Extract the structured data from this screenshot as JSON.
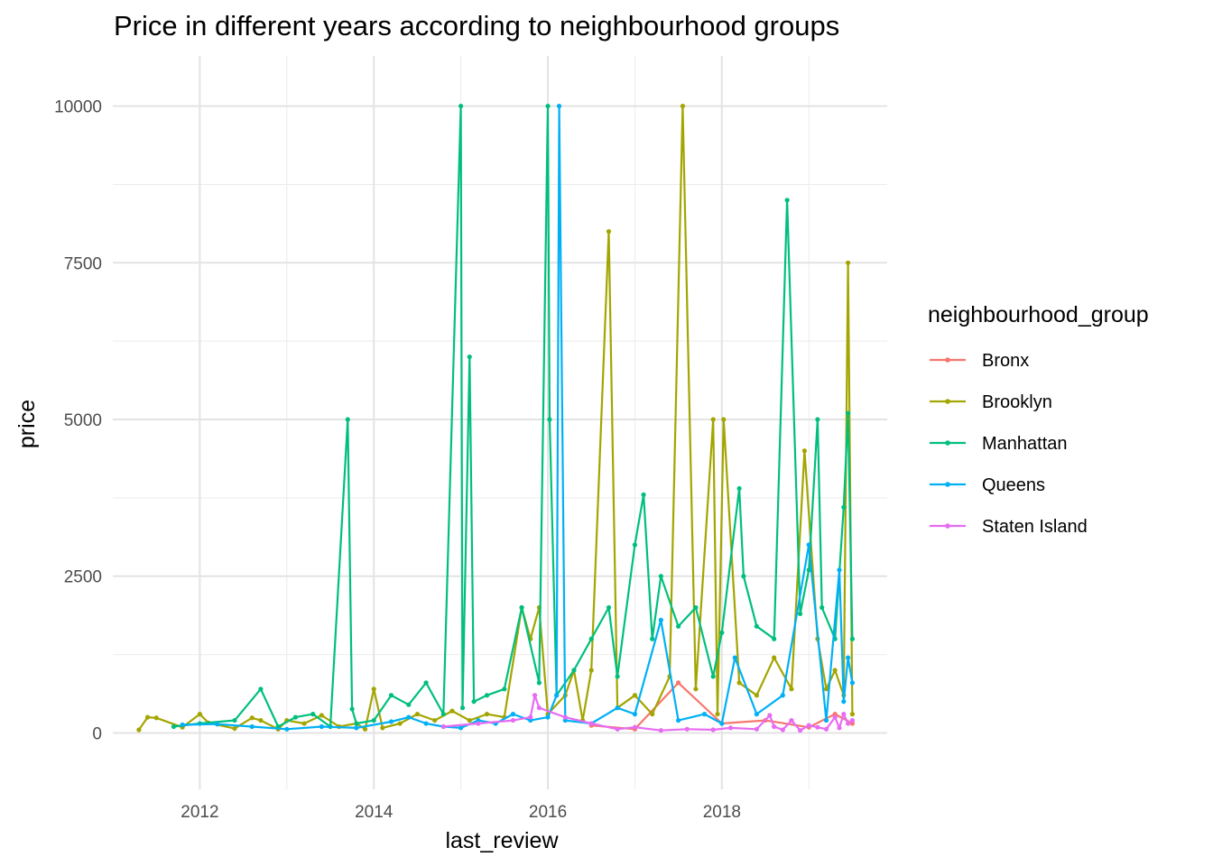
{
  "chart_data": {
    "type": "line",
    "title": "Price in different years according to neighbourhood groups",
    "xlabel": "last_review",
    "ylabel": "price",
    "xlim": [
      2011.0,
      2019.9
    ],
    "ylim": [
      -900,
      10800
    ],
    "x_ticks": [
      2012,
      2014,
      2016,
      2018
    ],
    "x_tick_labels": [
      "2012",
      "2014",
      "2016",
      "2018"
    ],
    "y_ticks": [
      0,
      2500,
      5000,
      7500,
      10000
    ],
    "y_tick_labels": [
      "0",
      "2500",
      "5000",
      "7500",
      "10000"
    ],
    "grid": true,
    "legend": {
      "title": "neighbourhood_group",
      "position": "right"
    },
    "series": [
      {
        "name": "Bronx",
        "color": "#F8766D",
        "x": [
          2016.5,
          2017.0,
          2017.5,
          2018.0,
          2018.5,
          2019.0,
          2019.3,
          2019.5
        ],
        "y": [
          120,
          60,
          800,
          150,
          200,
          90,
          300,
          150
        ]
      },
      {
        "name": "Brooklyn",
        "color": "#A3A500",
        "x": [
          2011.3,
          2011.4,
          2011.5,
          2011.8,
          2012.0,
          2012.1,
          2012.4,
          2012.6,
          2012.7,
          2012.9,
          2013.0,
          2013.2,
          2013.4,
          2013.6,
          2013.8,
          2013.9,
          2014.0,
          2014.1,
          2014.3,
          2014.5,
          2014.7,
          2014.9,
          2015.1,
          2015.3,
          2015.5,
          2015.7,
          2015.8,
          2015.9,
          2016.0,
          2016.2,
          2016.3,
          2016.4,
          2016.5,
          2016.7,
          2016.8,
          2017.0,
          2017.2,
          2017.4,
          2017.55,
          2017.7,
          2017.9,
          2017.95,
          2018.02,
          2018.2,
          2018.4,
          2018.6,
          2018.8,
          2018.95,
          2019.1,
          2019.2,
          2019.3,
          2019.4,
          2019.45,
          2019.5
        ],
        "y": [
          50,
          250,
          240,
          90,
          300,
          160,
          70,
          240,
          200,
          60,
          200,
          150,
          280,
          100,
          150,
          60,
          700,
          80,
          150,
          300,
          200,
          350,
          200,
          300,
          250,
          2000,
          1500,
          2000,
          300,
          600,
          1000,
          200,
          1000,
          8000,
          400,
          600,
          300,
          900,
          10000,
          700,
          5000,
          300,
          5000,
          800,
          600,
          1200,
          700,
          4500,
          1500,
          700,
          1000,
          600,
          7500,
          300
        ]
      },
      {
        "name": "Manhattan",
        "color": "#00BF7D",
        "x": [
          2011.7,
          2012.0,
          2012.4,
          2012.7,
          2012.9,
          2013.1,
          2013.3,
          2013.5,
          2013.7,
          2013.75,
          2013.8,
          2014.0,
          2014.2,
          2014.4,
          2014.6,
          2014.8,
          2015.0,
          2015.02,
          2015.1,
          2015.15,
          2015.3,
          2015.5,
          2015.7,
          2015.9,
          2016.0,
          2016.02,
          2016.1,
          2016.3,
          2016.5,
          2016.7,
          2016.8,
          2017.0,
          2017.1,
          2017.2,
          2017.3,
          2017.5,
          2017.7,
          2017.9,
          2018.0,
          2018.2,
          2018.25,
          2018.4,
          2018.6,
          2018.75,
          2018.9,
          2019.0,
          2019.1,
          2019.15,
          2019.3,
          2019.4,
          2019.45,
          2019.5
        ],
        "y": [
          100,
          150,
          200,
          700,
          100,
          250,
          300,
          100,
          5000,
          380,
          150,
          200,
          600,
          450,
          800,
          300,
          10000,
          400,
          6000,
          500,
          600,
          700,
          2000,
          800,
          10000,
          5000,
          600,
          1000,
          1500,
          2000,
          900,
          3000,
          3800,
          1500,
          2500,
          1700,
          2000,
          900,
          1600,
          3900,
          2500,
          1700,
          1500,
          8500,
          1900,
          2600,
          5000,
          2000,
          1500,
          3600,
          5100,
          1500
        ]
      },
      {
        "name": "Queens",
        "color": "#00B0F6",
        "x": [
          2011.8,
          2012.2,
          2012.6,
          2013.0,
          2013.4,
          2013.8,
          2014.2,
          2014.4,
          2014.6,
          2014.8,
          2015.0,
          2015.2,
          2015.4,
          2015.6,
          2015.8,
          2016.0,
          2016.1,
          2016.13,
          2016.2,
          2016.5,
          2016.8,
          2017.0,
          2017.3,
          2017.5,
          2017.8,
          2018.0,
          2018.15,
          2018.4,
          2018.7,
          2019.0,
          2019.2,
          2019.35,
          2019.4,
          2019.45,
          2019.5
        ],
        "y": [
          130,
          140,
          100,
          60,
          100,
          80,
          180,
          250,
          150,
          100,
          80,
          200,
          150,
          300,
          200,
          250,
          600,
          10000,
          200,
          150,
          400,
          300,
          1800,
          200,
          300,
          150,
          1200,
          300,
          600,
          3000,
          200,
          2600,
          500,
          1200,
          800
        ]
      },
      {
        "name": "Staten Island",
        "color": "#E76BF3",
        "x": [
          2014.8,
          2015.2,
          2015.6,
          2015.8,
          2015.85,
          2015.9,
          2016.2,
          2016.5,
          2016.8,
          2017.0,
          2017.3,
          2017.6,
          2017.9,
          2018.1,
          2018.4,
          2018.55,
          2018.6,
          2018.7,
          2018.8,
          2018.9,
          2019.0,
          2019.1,
          2019.2,
          2019.3,
          2019.35,
          2019.4,
          2019.45,
          2019.5
        ],
        "y": [
          100,
          150,
          200,
          250,
          600,
          400,
          250,
          150,
          60,
          90,
          40,
          60,
          50,
          80,
          60,
          280,
          100,
          50,
          200,
          40,
          120,
          90,
          60,
          250,
          80,
          300,
          150,
          200
        ]
      }
    ]
  }
}
